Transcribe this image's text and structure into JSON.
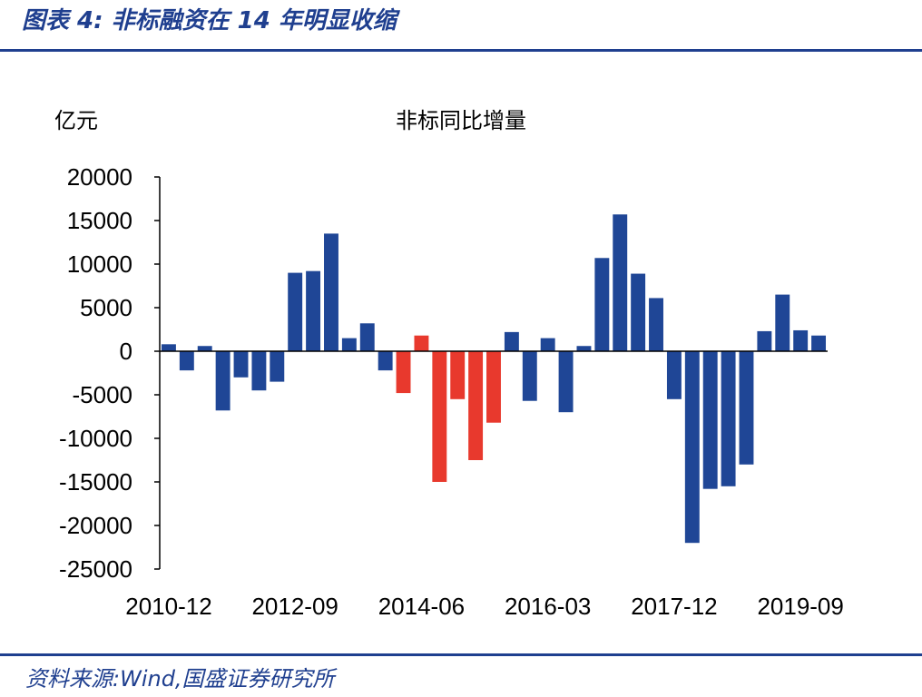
{
  "header": {
    "title": "图表 4:  非标融资在 14 年明显收缩"
  },
  "footer": {
    "source": "资料来源:Wind,国盛证券研究所"
  },
  "colors": {
    "primary": "#1f3f8f",
    "positive_bar": "#1f4696",
    "highlight_bar": "#e8392d",
    "axis": "#000000"
  },
  "chart_data": {
    "type": "bar",
    "title": "非标同比增量",
    "unit": "亿元",
    "xlabel": "",
    "ylabel": "",
    "ylim": [
      -25000,
      20000
    ],
    "yticks": [
      20000,
      15000,
      10000,
      5000,
      0,
      -5000,
      -10000,
      -15000,
      -20000,
      -25000
    ],
    "xtick_labels": [
      "2010-12",
      "2012-09",
      "2014-06",
      "2016-03",
      "2017-12",
      "2019-09"
    ],
    "xtick_category_index": [
      0,
      7,
      14,
      21,
      28,
      35
    ],
    "categories": [
      "2010-12",
      "2011-03",
      "2011-06",
      "2011-09",
      "2011-12",
      "2012-03",
      "2012-06",
      "2012-09",
      "2012-12",
      "2013-03",
      "2013-06",
      "2013-09",
      "2013-12",
      "2014-03",
      "2014-06",
      "2014-09",
      "2014-12",
      "2015-03",
      "2015-06",
      "2015-09",
      "2015-12",
      "2016-03",
      "2016-06",
      "2016-09",
      "2016-12",
      "2017-03",
      "2017-06",
      "2017-09",
      "2017-12",
      "2018-03",
      "2018-06",
      "2018-09",
      "2018-12",
      "2019-03",
      "2019-06",
      "2019-09",
      "2019-12"
    ],
    "values": [
      800,
      -2200,
      600,
      -6800,
      -3000,
      -4500,
      -3500,
      9000,
      9200,
      13500,
      1500,
      3200,
      -2200,
      -4800,
      1800,
      -15000,
      -5500,
      -12500,
      -8200,
      2200,
      -5700,
      1500,
      -7000,
      600,
      10700,
      15700,
      8900,
      6100,
      -5500,
      -22000,
      -15800,
      -15500,
      -13000,
      2300,
      6500,
      2400,
      1800
    ],
    "bar_colors": [
      "#1f4696",
      "#1f4696",
      "#1f4696",
      "#1f4696",
      "#1f4696",
      "#1f4696",
      "#1f4696",
      "#1f4696",
      "#1f4696",
      "#1f4696",
      "#1f4696",
      "#1f4696",
      "#1f4696",
      "#e8392d",
      "#e8392d",
      "#e8392d",
      "#e8392d",
      "#e8392d",
      "#e8392d",
      "#1f4696",
      "#1f4696",
      "#1f4696",
      "#1f4696",
      "#1f4696",
      "#1f4696",
      "#1f4696",
      "#1f4696",
      "#1f4696",
      "#1f4696",
      "#1f4696",
      "#1f4696",
      "#1f4696",
      "#1f4696",
      "#1f4696",
      "#1f4696",
      "#1f4696",
      "#1f4696"
    ],
    "grid": false,
    "legend": "none"
  }
}
